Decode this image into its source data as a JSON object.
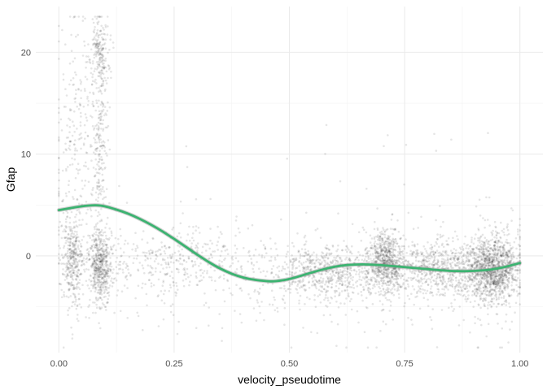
{
  "chart_data": {
    "type": "scatter",
    "title": "",
    "xlabel": "velocity_pseudotime",
    "ylabel": "Gfap",
    "xlim": [
      -0.05,
      1.05
    ],
    "ylim": [
      -9.5,
      24.5
    ],
    "x_ticks": [
      0.0,
      0.25,
      0.5,
      0.75,
      1.0
    ],
    "x_tick_labels": [
      "0.00",
      "0.25",
      "0.50",
      "0.75",
      "1.00"
    ],
    "x_minor_ticks": [
      0.125,
      0.375,
      0.625,
      0.875
    ],
    "y_ticks": [
      0,
      10,
      20
    ],
    "y_tick_labels": [
      "0",
      "10",
      "20"
    ],
    "y_minor_ticks": [
      -5,
      5,
      15
    ],
    "grid": true,
    "legend": "none",
    "point_color": "#000000",
    "point_opacity": 0.1,
    "point_count_estimate": 6000,
    "point_clusters": [
      {
        "x_center": 0.09,
        "x_spread": 0.012,
        "y_center": -0.8,
        "y_spread": 1.8,
        "n": 500
      },
      {
        "x_center": 0.09,
        "x_spread": 0.01,
        "y_center": 20.0,
        "y_spread": 1.6,
        "n": 180
      },
      {
        "x_center": 0.09,
        "x_spread": 0.008,
        "y_center": 10.0,
        "y_spread": 5.0,
        "n": 200
      },
      {
        "x_center": 0.03,
        "x_spread": 0.012,
        "y_center": -0.5,
        "y_spread": 2.2,
        "n": 350
      },
      {
        "x_center": 0.04,
        "x_spread": 0.03,
        "y_center": 12.0,
        "y_spread": 6.0,
        "n": 250
      },
      {
        "x_center": 0.71,
        "x_spread": 0.02,
        "y_center": -0.5,
        "y_spread": 1.5,
        "n": 700
      },
      {
        "x_center": 0.94,
        "x_spread": 0.03,
        "y_center": -1.3,
        "y_spread": 1.6,
        "n": 1300
      },
      {
        "x_center": 0.82,
        "x_spread": 0.05,
        "y_center": -1.3,
        "y_spread": 1.4,
        "n": 600
      },
      {
        "x_center": 0.58,
        "x_spread": 0.07,
        "y_center": -1.6,
        "y_spread": 1.4,
        "n": 700
      },
      {
        "x_center": 0.25,
        "x_spread": 0.1,
        "y_center": -0.5,
        "y_spread": 1.5,
        "n": 400
      }
    ],
    "smooth_line": {
      "color": "#3cb371",
      "band_color": "#999999",
      "x": [
        0.0,
        0.05,
        0.08,
        0.1,
        0.15,
        0.2,
        0.25,
        0.3,
        0.35,
        0.4,
        0.45,
        0.47,
        0.5,
        0.55,
        0.6,
        0.65,
        0.7,
        0.75,
        0.8,
        0.85,
        0.9,
        0.95,
        1.0
      ],
      "y": [
        4.5,
        4.9,
        5.0,
        4.9,
        4.2,
        3.1,
        1.7,
        0.1,
        -1.3,
        -2.2,
        -2.5,
        -2.5,
        -2.3,
        -1.6,
        -1.0,
        -0.8,
        -0.9,
        -1.1,
        -1.3,
        -1.5,
        -1.5,
        -1.3,
        -0.7
      ]
    }
  }
}
